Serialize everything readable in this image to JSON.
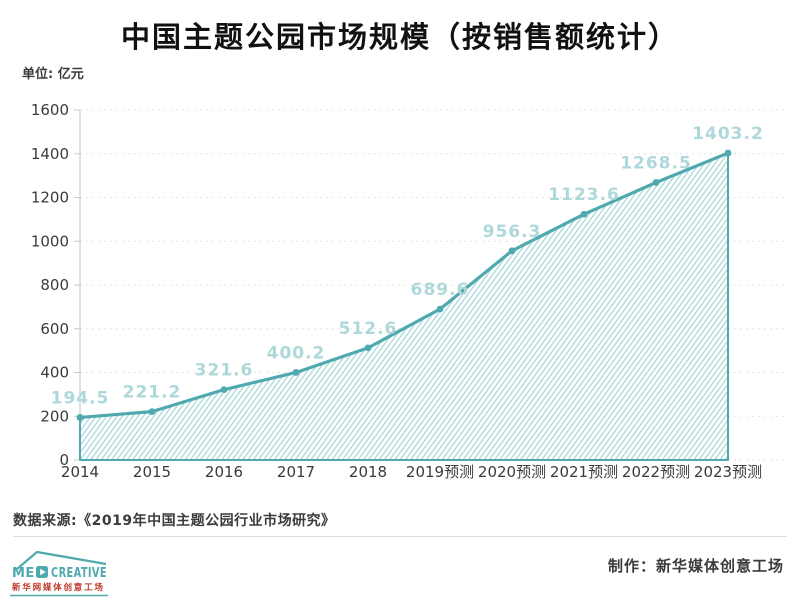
{
  "title": "中国主题公园市场规模（按销售额统计）",
  "unit_label": "单位: 亿元",
  "source": "数据来源:《2019年中国主题公园行业市场研究》",
  "credit": "制作：新华媒体创意工场",
  "logo": {
    "brand_left": "ME",
    "brand_right": "CREATIVE",
    "subtitle": "新华网媒体创意工场"
  },
  "colors": {
    "title_text": "#111111",
    "tick_text": "#3b3b3b",
    "line": "#4fa9ae",
    "hatch": "#a3d5d6",
    "data_label": "#aed8da",
    "grid": "#e2e2e2",
    "axis": "#d5d5d5",
    "divider": "#dddddd",
    "logo_teal": "#4fa9ae",
    "logo_red": "#c0392b"
  },
  "chart_data": {
    "type": "area",
    "title": "中国主题公园市场规模（按销售额统计）",
    "unit": "亿元",
    "categories": [
      "2014",
      "2015",
      "2016",
      "2017",
      "2018",
      "2019预测",
      "2020预测",
      "2021预测",
      "2022预测",
      "2023预测"
    ],
    "values": [
      194.5,
      221.2,
      321.6,
      400.2,
      512.6,
      689.6,
      956.3,
      1123.6,
      1268.5,
      1403.2
    ],
    "ylim": [
      0,
      1600
    ],
    "ytick_step": 200,
    "grid": "dashed-horizontal",
    "legend": "none",
    "data_labels": true,
    "style": "hand-drawn hatched teal area chart"
  }
}
